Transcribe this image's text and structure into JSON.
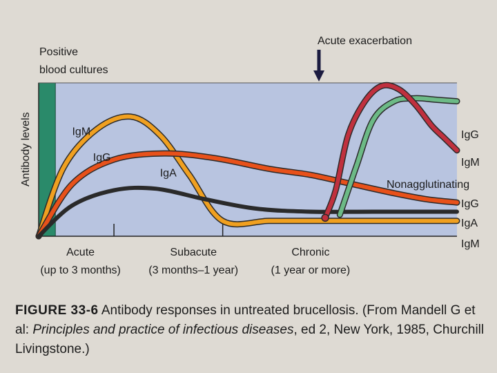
{
  "chart_data": {
    "type": "line",
    "title": "",
    "ylabel": "Antibody levels",
    "xlabel": "",
    "xlim": [
      0,
      100
    ],
    "ylim": [
      0,
      100
    ],
    "grid": false,
    "stages": [
      {
        "name": "Acute",
        "range": "(up to 3 months)",
        "x": 10
      },
      {
        "name": "Subacute",
        "range": "(3 months–1 year)",
        "x": 37
      },
      {
        "name": "Chronic",
        "range": "(1 year or more)",
        "x": 65
      }
    ],
    "stage_ticks": [
      18,
      44
    ],
    "positive_cultures_label_line1": "Positive",
    "positive_cultures_label_line2": "blood cultures",
    "positive_cultures_x_end": 4,
    "acute_exacerbation_label": "Acute exacerbation",
    "acute_exacerbation_x": 67,
    "nonagglutinating_label": "Nonagglutinating",
    "series": [
      {
        "name": "IgM",
        "group": "early",
        "color": "#f0a020",
        "x": [
          0,
          6,
          14,
          22,
          29,
          36,
          44,
          55,
          65,
          75,
          85,
          100
        ],
        "y": [
          0,
          45,
          70,
          78,
          66,
          40,
          10,
          10,
          10,
          10,
          10,
          10
        ],
        "label_xy": [
          8,
          66
        ],
        "end_label": "IgM"
      },
      {
        "name": "IgG",
        "group": "early",
        "color": "#e8511a",
        "x": [
          0,
          8,
          18,
          30,
          42,
          55,
          65,
          75,
          85,
          93,
          100
        ],
        "y": [
          0,
          34,
          50,
          54,
          51,
          44,
          40,
          34,
          28,
          24,
          22
        ],
        "label_xy": [
          13,
          49
        ],
        "end_label": "IgG"
      },
      {
        "name": "IgA",
        "group": "early",
        "color": "#1a1a1a",
        "x": [
          0,
          8,
          18,
          28,
          40,
          52,
          65,
          80,
          100
        ],
        "y": [
          0,
          20,
          30,
          31,
          24,
          18,
          16,
          16,
          16
        ],
        "label_xy": [
          29,
          39
        ],
        "end_label": "IgA"
      },
      {
        "name": "IgG",
        "group": "exacerbation",
        "color": "#6cba86",
        "x": [
          72,
          76,
          80,
          85,
          90,
          95,
          100
        ],
        "y": [
          14,
          46,
          76,
          88,
          90,
          89,
          88
        ],
        "end_label": "IgG"
      },
      {
        "name": "IgM",
        "group": "exacerbation",
        "color": "#c0303e",
        "x": [
          68.5,
          71,
          74,
          78,
          82,
          86,
          90,
          94,
          97,
          100
        ],
        "y": [
          12,
          30,
          66,
          88,
          98,
          96,
          86,
          72,
          64,
          56
        ],
        "end_label": "IgM"
      }
    ],
    "right_labels": [
      "IgG",
      "IgM",
      "Nonagglutinating",
      "IgG",
      "IgA",
      "IgM"
    ]
  },
  "caption": {
    "figure": "FIGURE 33-6",
    "text1": " Antibody responses in untreated brucellosis. (From Mandell G et al: ",
    "book": "Principles and practice of infectious diseases",
    "text2": ", ed 2, New York, 1985, Churchill Livingstone.)"
  },
  "colors": {
    "plot_bg": "#b8c4e0",
    "culture_bar": "#2a8a6a",
    "page_bg": "#dedad3"
  }
}
